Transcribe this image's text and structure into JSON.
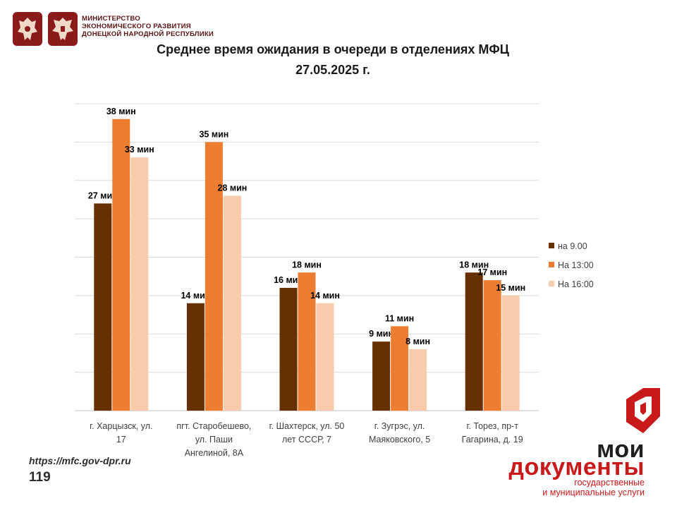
{
  "header": {
    "ministry_lines": [
      "МИНИСТЕРСТВО",
      "ЭКОНОМИЧЕСКОГО РАЗВИТИЯ",
      "ДОНЕЦКОЙ НАРОДНОЙ РЕСПУБЛИКИ"
    ],
    "emblem_color": "#8b1a1a"
  },
  "title_line1": "Среднее время ожидания в очереди в отделениях МФЦ",
  "title_line2": "27.05.2025   г.",
  "chart_data": {
    "type": "bar",
    "categories": [
      [
        "г. Харцызск, ул.",
        "17"
      ],
      [
        "пгт. Старобешево,",
        "ул. Паши",
        "Ангелиной, 8А"
      ],
      [
        "г. Шахтерск, ул. 50",
        "лет СССР, 7"
      ],
      [
        "г. Зугрэс, ул.",
        "Маяковского, 5"
      ],
      [
        "г. Торез, пр-т",
        "Гагарина, д. 19"
      ]
    ],
    "series": [
      {
        "name": "на 9.00",
        "color": "#663001",
        "values": [
          27,
          14,
          16,
          9,
          18
        ]
      },
      {
        "name": "На 13:00",
        "color": "#ed7d31",
        "values": [
          38,
          35,
          18,
          11,
          17
        ]
      },
      {
        "name": "На 16:00",
        "color": "#f8cbad",
        "values": [
          33,
          28,
          14,
          8,
          15
        ]
      }
    ],
    "value_suffix": " мин",
    "ylim": [
      0,
      40
    ],
    "grid": true,
    "legend_position": "right"
  },
  "footer": {
    "url": "https://mfc.gov-dpr.ru",
    "page_number": "119"
  },
  "brand": {
    "line1": "мои",
    "line2": "документы",
    "line3": "государственные",
    "line4": "и муниципальные услуги",
    "primary_color": "#c8191b"
  }
}
